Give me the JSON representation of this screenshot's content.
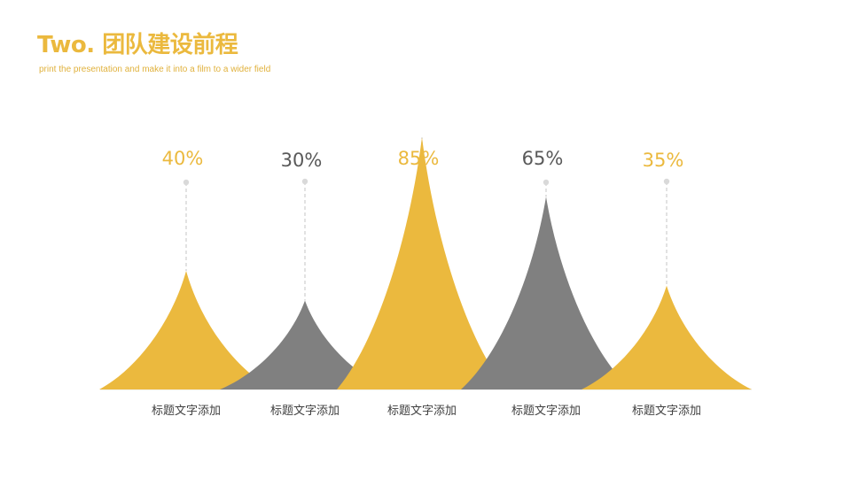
{
  "title": "Two. 团队建设前程",
  "subtitle": "print the presentation and make it into a film to a wider field",
  "colors": {
    "accent": "#ebb93e",
    "gray": "#808080",
    "muted_label": "#595959",
    "connector": "#d9d9d9",
    "subtitle": "#e0b13c"
  },
  "chart_data": {
    "type": "area",
    "title": "",
    "xlabel": "",
    "ylabel": "",
    "ylim": [
      0,
      100
    ],
    "grid": false,
    "legend": "none",
    "categories": [
      "标题文字添加",
      "标题文字添加",
      "标题文字添加",
      "标题文字添加",
      "标题文字添加"
    ],
    "labels": [
      "40%",
      "30%",
      "85%",
      "65%",
      "35%"
    ],
    "values": [
      40,
      30,
      85,
      65,
      35
    ],
    "point_colors": [
      "accent",
      "gray",
      "accent",
      "gray",
      "accent"
    ],
    "label_colors": [
      "accent",
      "muted_label",
      "accent",
      "muted_label",
      "accent"
    ]
  }
}
